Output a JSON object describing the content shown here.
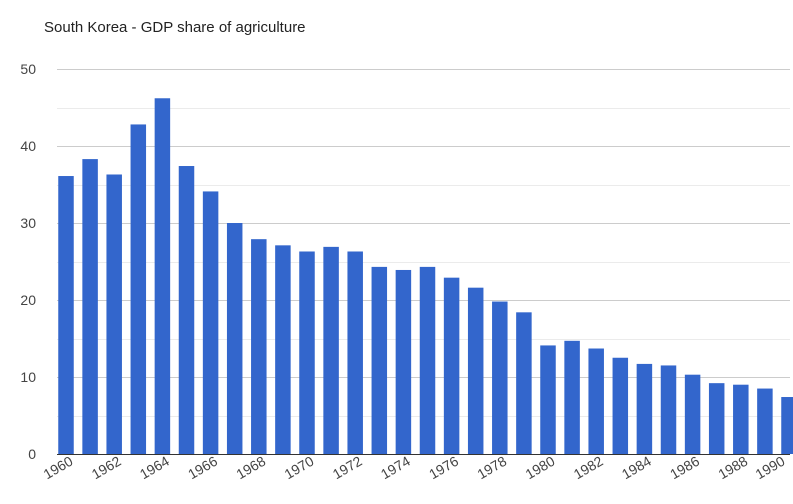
{
  "chart_data": {
    "type": "bar",
    "title": "South Korea - GDP share of agriculture",
    "xlabel": "",
    "ylabel": "",
    "categories": [
      "1960",
      "1961",
      "1962",
      "1963",
      "1964",
      "1965",
      "1966",
      "1967",
      "1968",
      "1969",
      "1970",
      "1971",
      "1972",
      "1973",
      "1974",
      "1975",
      "1976",
      "1977",
      "1978",
      "1979",
      "1980",
      "1981",
      "1982",
      "1983",
      "1984",
      "1985",
      "1986",
      "1987",
      "1988",
      "1989",
      "1990"
    ],
    "x_tick_labels": [
      "1960",
      "1962",
      "1964",
      "1966",
      "1968",
      "1970",
      "1972",
      "1974",
      "1976",
      "1978",
      "1980",
      "1982",
      "1984",
      "1986",
      "1988",
      "1990"
    ],
    "values": [
      36.1,
      38.3,
      36.3,
      42.8,
      46.2,
      37.4,
      34.1,
      30.0,
      27.9,
      27.1,
      26.3,
      26.9,
      26.3,
      24.3,
      23.9,
      24.3,
      22.9,
      21.6,
      19.8,
      18.4,
      14.1,
      14.7,
      13.7,
      12.5,
      11.7,
      11.5,
      10.3,
      9.2,
      9.0,
      8.5,
      7.4
    ],
    "ylim": [
      0,
      50
    ],
    "y_ticks": [
      0,
      10,
      20,
      30,
      40,
      50
    ],
    "grid": true,
    "legend": "none",
    "bar_color": "#3366cc"
  }
}
